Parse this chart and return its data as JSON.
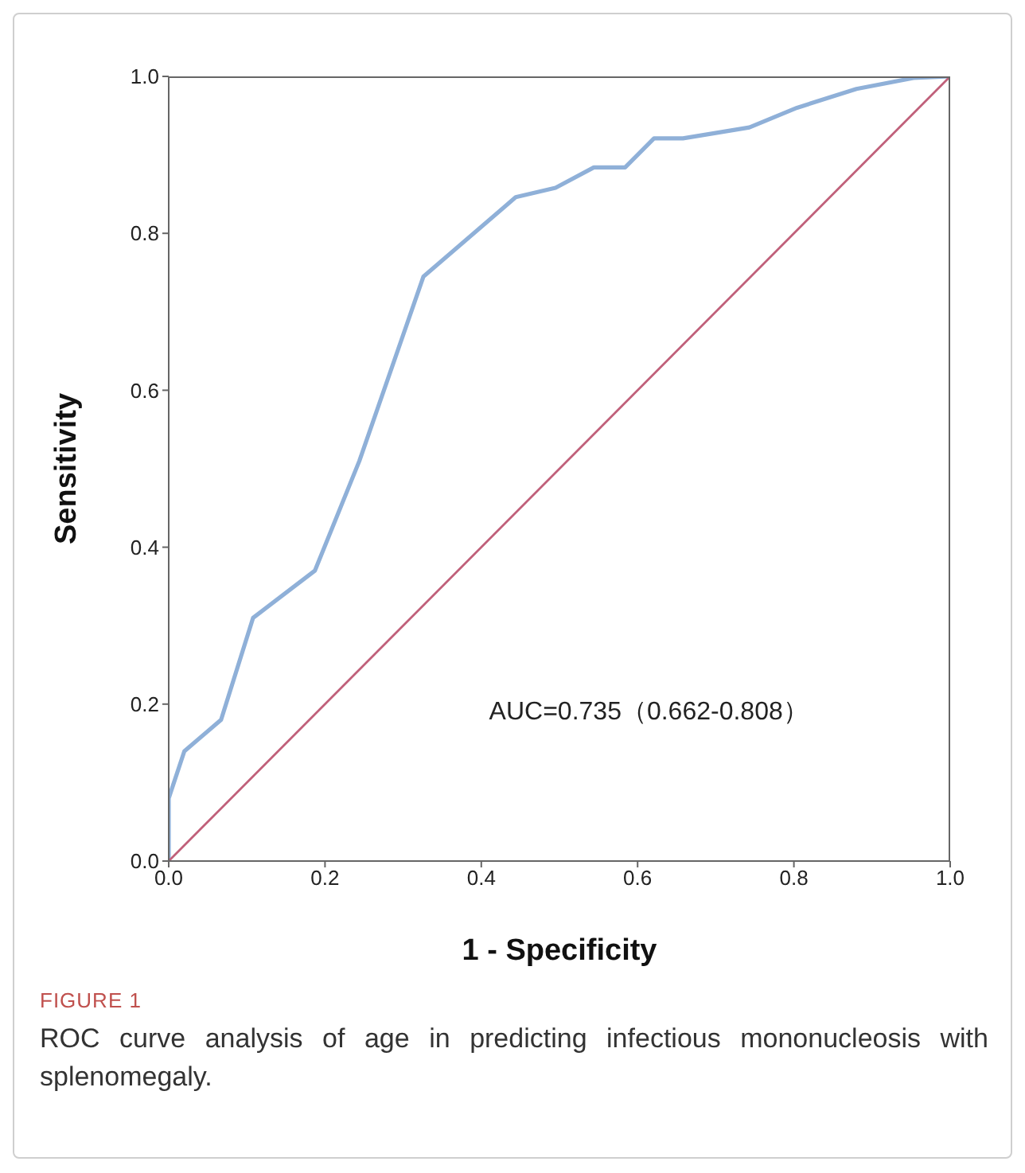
{
  "chart_data": {
    "type": "line",
    "xlabel": "1 - Specificity",
    "ylabel": "Sensitivity",
    "series": [
      {
        "color": "#8fb0d8",
        "x": [
          0,
          0,
          0.02,
          0.067,
          0.108,
          0.187,
          0.244,
          0.326,
          0.444,
          0.495,
          0.544,
          0.584,
          0.621,
          0.658,
          0.743,
          0.804,
          0.88,
          0.953,
          1
        ],
        "values": [
          0,
          0.08,
          0.14,
          0.18,
          0.31,
          0.37,
          0.51,
          0.745,
          0.846,
          0.858,
          0.884,
          0.884,
          0.921,
          0.921,
          0.935,
          0.96,
          0.984,
          0.998,
          1
        ]
      },
      {
        "color": "#c0607a",
        "x": [
          0,
          1
        ],
        "values": [
          0,
          1
        ]
      }
    ],
    "xlim": [
      0,
      1
    ],
    "ylim": [
      0,
      1
    ],
    "xticks": [
      {
        "value": 0,
        "label": "0.0"
      },
      0.2,
      0.4,
      0.6,
      0.8,
      {
        "value": 1,
        "label": "1.0"
      }
    ],
    "yticks": [
      {
        "value": 0,
        "label": "0.0"
      },
      0.2,
      0.4,
      0.6,
      0.8,
      {
        "value": 1,
        "label": "1.0"
      }
    ],
    "annotations": [
      "AUC=0.735（0.662-0.808）",
      "FIGURE 1",
      "ROC curve analysis of age in predicting infectious mononucleosis with splenomegaly."
    ]
  }
}
